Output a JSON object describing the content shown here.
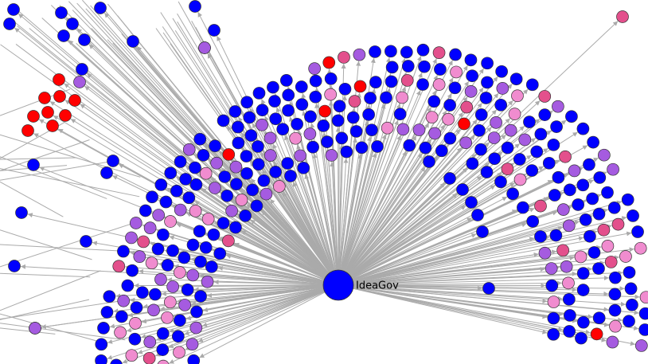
{
  "center": {
    "label": "IdeaGov"
  }
}
